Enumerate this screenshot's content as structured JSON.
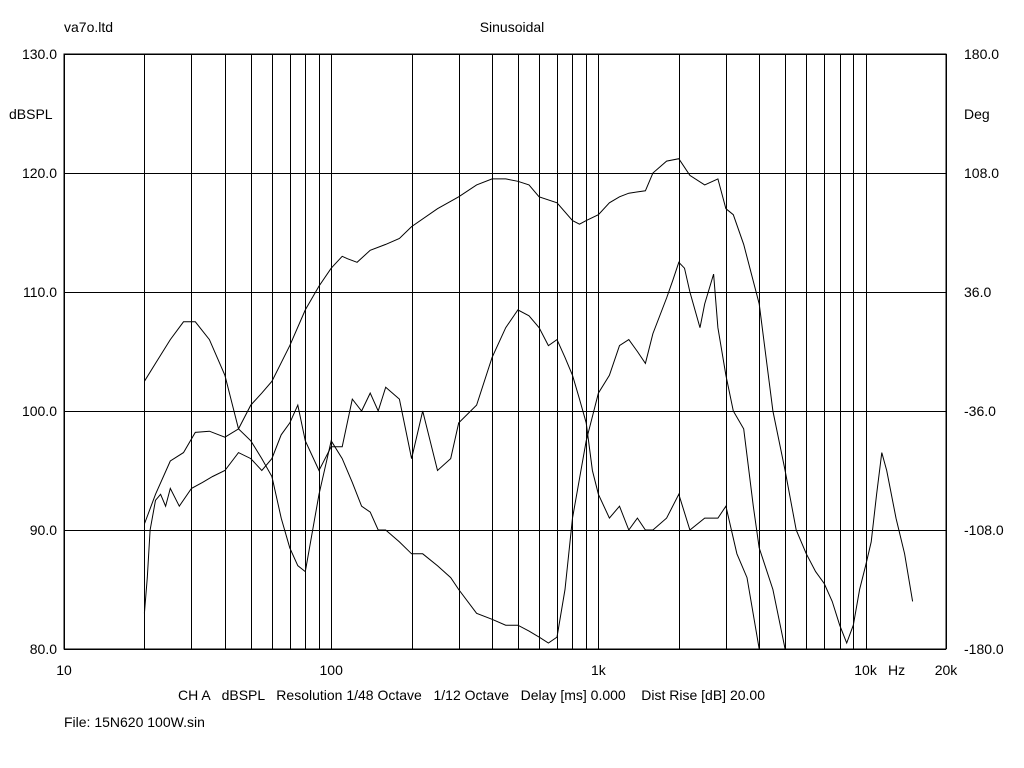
{
  "header": {
    "left": "va7o.ltd",
    "center": "Sinusoidal"
  },
  "footer": {
    "settings": "CH A   dBSPL   Resolution 1/48 Octave   1/12 Octave   Delay [ms] 0.000    Dist Rise [dB] 20.00",
    "file": "File: 15N620 100W.sin"
  },
  "chart_data": {
    "type": "line",
    "x_scale": "log",
    "xlim": [
      10,
      20000
    ],
    "ylim": [
      80,
      130
    ],
    "y2lim": [
      -180,
      180
    ],
    "ylabel": "dBSPL",
    "y2label": "Deg",
    "x_unit": "Hz",
    "x_ticks": [
      {
        "value": 10,
        "label": "10"
      },
      {
        "value": 100,
        "label": "100"
      },
      {
        "value": 1000,
        "label": "1k"
      },
      {
        "value": 10000,
        "label": "10k"
      },
      {
        "value": 20000,
        "label": "20k"
      }
    ],
    "y_ticks": [
      {
        "value": 80,
        "label": "80.0"
      },
      {
        "value": 90,
        "label": "90.0"
      },
      {
        "value": 100,
        "label": "100.0"
      },
      {
        "value": 110,
        "label": "110.0"
      },
      {
        "value": 120,
        "label": "120.0"
      },
      {
        "value": 130,
        "label": "130.0"
      }
    ],
    "y2_ticks": [
      {
        "value": -180,
        "label": "-180.0"
      },
      {
        "value": -108,
        "label": "-108.0"
      },
      {
        "value": -36,
        "label": "-36.0"
      },
      {
        "value": 36,
        "label": "36.0"
      },
      {
        "value": 108,
        "label": "108.0"
      },
      {
        "value": 180,
        "label": "180.0"
      }
    ],
    "grid": true,
    "series": [
      {
        "x": [
          20,
          22,
          25,
          28,
          31,
          35,
          40,
          45,
          50,
          55,
          60,
          70,
          80,
          90,
          100,
          110,
          115,
          125,
          140,
          160,
          180,
          200,
          250,
          300,
          350,
          400,
          450,
          500,
          550,
          600,
          700,
          800,
          850,
          900,
          1000,
          1100,
          1200,
          1300,
          1500,
          1600,
          1800,
          2000,
          2200,
          2500,
          2800,
          3000,
          3200,
          3500,
          4000,
          4500,
          5000,
          5500,
          6000,
          6500,
          7000,
          7500,
          8000,
          8500,
          9000,
          9500,
          10000,
          10500,
          11000,
          11500,
          12000,
          13000,
          14000,
          15000
        ],
        "y": [
          90.5,
          93,
          95.8,
          96.5,
          98.2,
          98.3,
          97.8,
          98.5,
          100.5,
          101.5,
          102.5,
          105.5,
          108.5,
          110.5,
          112,
          113,
          112.8,
          112.5,
          113.5,
          114,
          114.5,
          115.5,
          117,
          118,
          119,
          119.5,
          119.5,
          119.3,
          119,
          118,
          117.5,
          116,
          115.7,
          116,
          116.5,
          117.5,
          118,
          118.3,
          118.5,
          120,
          121,
          121.2,
          119.8,
          119,
          119.5,
          117,
          116.5,
          114,
          109,
          100,
          95,
          90,
          88,
          86.5,
          85.5,
          84,
          82,
          80.5,
          82,
          85,
          87,
          89,
          93,
          96.5,
          95,
          91,
          88,
          84
        ]
      },
      {
        "x": [
          20,
          22,
          25,
          28,
          31,
          35,
          40,
          45,
          50,
          55,
          60,
          65,
          70,
          75,
          80,
          90,
          100,
          110,
          120,
          130,
          140,
          150,
          160,
          180,
          200,
          220,
          250,
          280,
          300,
          350,
          400,
          450,
          500,
          550,
          600,
          650,
          700,
          750,
          800,
          900,
          1000,
          1100,
          1200,
          1300,
          1400,
          1500,
          1600,
          1800,
          1900,
          2000,
          2100,
          2200,
          2400,
          2500,
          2700,
          2800,
          3000,
          3200,
          3500,
          3800,
          4000,
          4500,
          5000
        ],
        "y": [
          102.5,
          104,
          106,
          107.5,
          107.5,
          106,
          103,
          98.5,
          97.5,
          96,
          94.5,
          91,
          88.5,
          87,
          86.5,
          93,
          97.5,
          96,
          94,
          92,
          91.5,
          90,
          90,
          89,
          88,
          88,
          87,
          86,
          85,
          83,
          82.5,
          82,
          82,
          81.5,
          81,
          80.5,
          81,
          85,
          91,
          97.5,
          101.5,
          103,
          105.5,
          106,
          105,
          104,
          106.5,
          109.5,
          111,
          112.5,
          112,
          110,
          107,
          109,
          111.5,
          107,
          103,
          100,
          98.5,
          92,
          88.5,
          85,
          80
        ]
      },
      {
        "x": [
          20,
          20.5,
          21,
          22,
          23,
          24,
          25,
          27,
          30,
          33,
          36,
          40,
          45,
          50,
          55,
          60,
          65,
          70,
          75,
          80,
          90,
          100,
          110,
          120,
          130,
          140,
          150,
          160,
          180,
          200,
          220,
          250,
          280,
          300,
          350,
          400,
          450,
          500,
          550,
          600,
          650,
          700,
          750,
          800,
          850,
          900,
          950,
          1000,
          1100,
          1200,
          1300,
          1400,
          1500,
          1600,
          1800,
          2000,
          2200,
          2500,
          2800,
          3000,
          3300,
          3600,
          4000
        ],
        "y": [
          83,
          86,
          90,
          92.5,
          93,
          92,
          93.5,
          92,
          93.5,
          94,
          94.5,
          95,
          96.5,
          96,
          95,
          96,
          98,
          99,
          100.5,
          97.5,
          95,
          97,
          97,
          101,
          100,
          101.5,
          100,
          102,
          101,
          96,
          100,
          95,
          96,
          99,
          100.5,
          104.5,
          107,
          108.5,
          108,
          107,
          105.5,
          106,
          104.5,
          103,
          101,
          99,
          95,
          93,
          91,
          92,
          90,
          91,
          90,
          90,
          91,
          93,
          90,
          91,
          91,
          92,
          88,
          86,
          80
        ]
      }
    ]
  }
}
